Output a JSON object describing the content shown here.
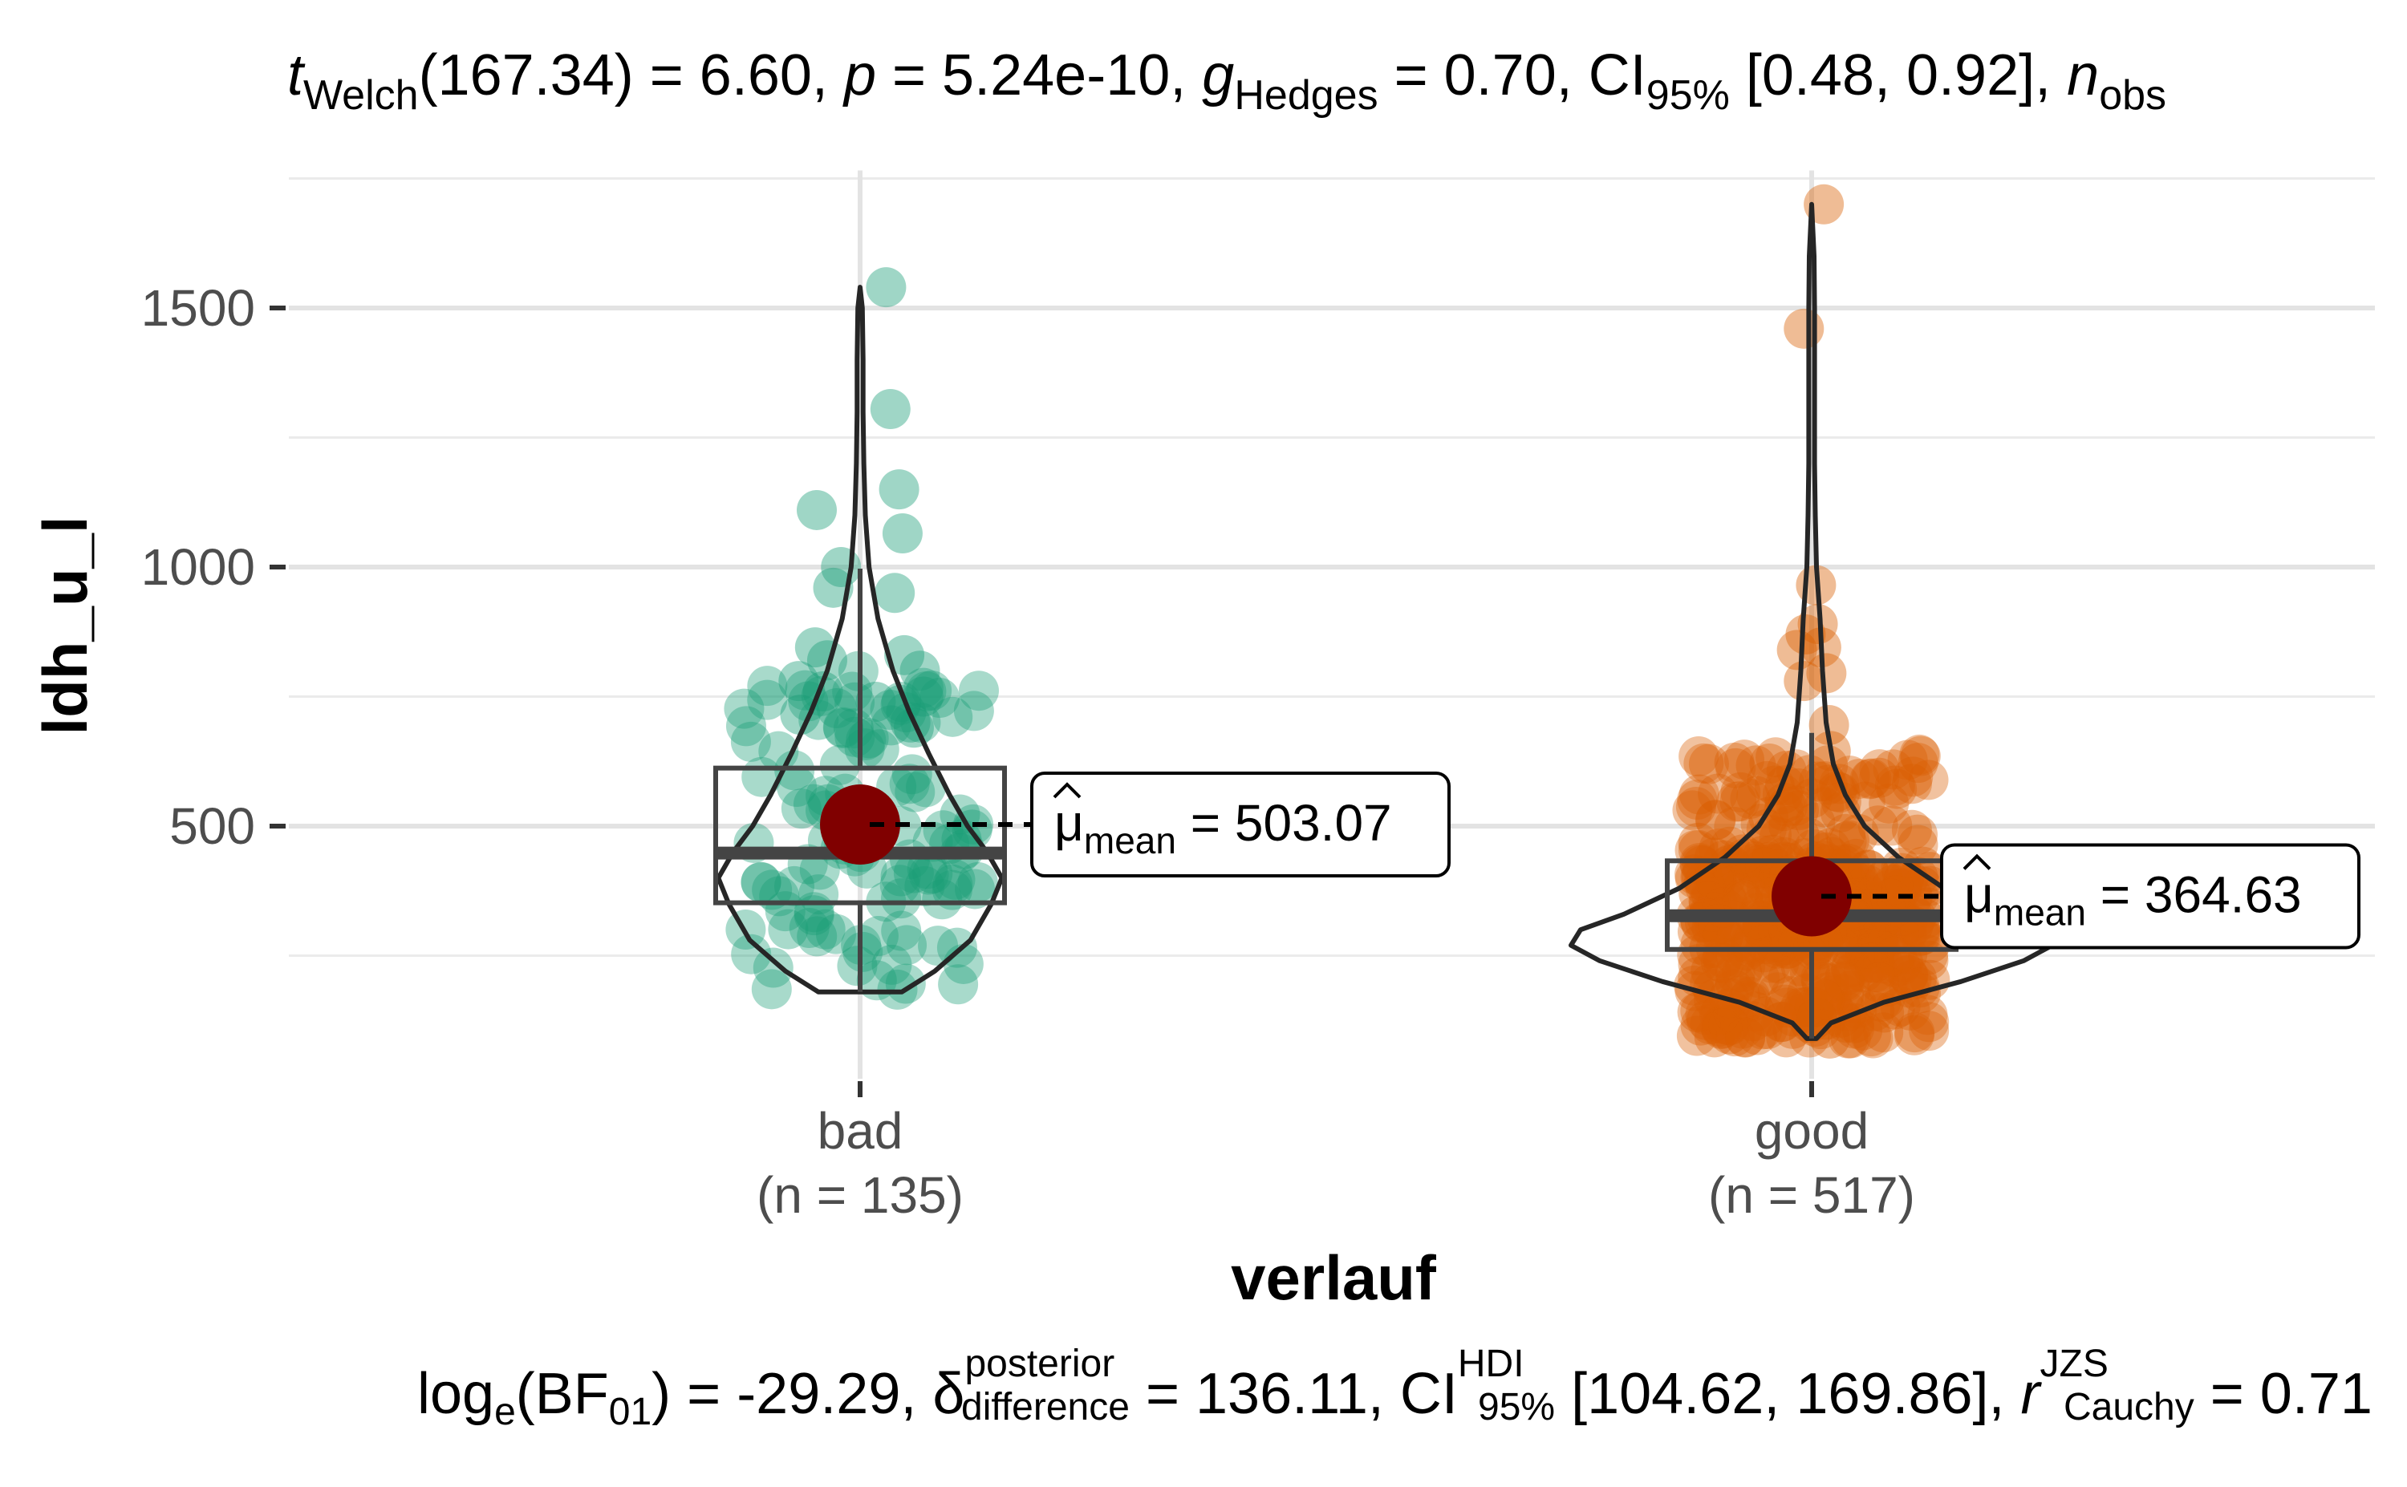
{
  "chart_data": {
    "type": "violin-box-scatter",
    "title": {
      "t": "t",
      "t_sub": "Welch",
      "df": "(167.34) = 6.60, ",
      "p": "p",
      "p_val": " = 5.24e-10, ",
      "g": "g",
      "g_sub": "Hedges",
      "g_val": " = 0.70, CI",
      "ci_sub": "95%",
      "ci_val": " [0.48, 0.92], ",
      "n": "n",
      "n_sub": "obs"
    },
    "subtitle": {
      "log": "log",
      "log_sub": "e",
      "bf_open": "(BF",
      "bf_sub": "01",
      "bf_val": ") = -29.29, ",
      "delta": "δ",
      "delta_sup": "posterior",
      "delta_sub": "difference",
      "delta_val": " = 136.11, CI",
      "hdi_sup": "HDI",
      "hdi_sub": "95%",
      "hdi_val": " [104.62, 169.86], ",
      "r": "r",
      "r_sup": "JZS",
      "r_sub": "Cauchy",
      "r_val": " = 0.71"
    },
    "xlabel": "verlauf",
    "ylabel": "ldh_u_l",
    "ylim": [
      0,
      1750
    ],
    "yticks": [
      500,
      1000,
      1500
    ],
    "ytick_labels": [
      "500",
      "1000",
      "1500"
    ],
    "minor_grid": [
      250,
      750,
      1250,
      1750
    ],
    "grid": true,
    "groups": [
      {
        "category": "bad",
        "n_label": "(n = 135)",
        "color": "#1b9e77",
        "box": {
          "q1": 352,
          "median": 448,
          "q3": 612,
          "whisker_low": 180,
          "whisker_high": 997
        },
        "mean": 503.07,
        "mean_label": {
          "mu": "μ",
          "sub": "mean",
          "val": " = 503.07"
        },
        "violin": [
          [
            180,
            0.28
          ],
          [
            220,
            0.5
          ],
          [
            280,
            0.74
          ],
          [
            350,
            0.88
          ],
          [
            400,
            0.95
          ],
          [
            450,
            0.85
          ],
          [
            500,
            0.72
          ],
          [
            560,
            0.6
          ],
          [
            640,
            0.46
          ],
          [
            720,
            0.33
          ],
          [
            800,
            0.22
          ],
          [
            900,
            0.12
          ],
          [
            1000,
            0.06
          ],
          [
            1100,
            0.035
          ],
          [
            1200,
            0.025
          ],
          [
            1300,
            0.02
          ],
          [
            1400,
            0.02
          ],
          [
            1500,
            0.015
          ],
          [
            1540,
            0.0
          ]
        ],
        "points": [
          {
            "x": 0.3,
            "y": 1540
          },
          {
            "x": 0.35,
            "y": 1305
          },
          {
            "x": 0.45,
            "y": 1150
          },
          {
            "x": -0.5,
            "y": 1110
          },
          {
            "x": 0.49,
            "y": 1065
          },
          {
            "x": -0.22,
            "y": 1000
          },
          {
            "x": -0.31,
            "y": 960
          },
          {
            "x": 0.4,
            "y": 950
          },
          {
            "x": 0.51,
            "y": 830
          },
          {
            "x": -0.52,
            "y": 845
          },
          {
            "x": -0.71,
            "y": 780
          },
          {
            "x": -0.38,
            "y": 820
          },
          {
            "x": 0.69,
            "y": 800
          },
          {
            "x": 0.73,
            "y": 750
          },
          {
            "x": -0.69,
            "y": 715
          },
          {
            "x": -0.43,
            "y": 760
          },
          {
            "x": 0.62,
            "y": 690
          },
          {
            "x": 0.58,
            "y": 700
          },
          {
            "x": 0.18,
            "y": 740
          }
        ]
      },
      {
        "category": "good",
        "n_label": "(n = 517)",
        "color": "#d95f02",
        "box": {
          "q1": 262,
          "median": 327,
          "q3": 433,
          "whisker_low": 90,
          "whisker_high": 680
        },
        "mean": 364.63,
        "mean_label": {
          "mu": "μ",
          "sub": "mean",
          "val": " = 364.63"
        },
        "violin": [
          [
            90,
            0.02
          ],
          [
            120,
            0.08
          ],
          [
            160,
            0.3
          ],
          [
            200,
            0.62
          ],
          [
            240,
            0.88
          ],
          [
            270,
            1.0
          ],
          [
            300,
            0.96
          ],
          [
            330,
            0.78
          ],
          [
            380,
            0.55
          ],
          [
            440,
            0.36
          ],
          [
            500,
            0.22
          ],
          [
            560,
            0.14
          ],
          [
            620,
            0.09
          ],
          [
            700,
            0.06
          ],
          [
            800,
            0.045
          ],
          [
            900,
            0.035
          ],
          [
            1000,
            0.02
          ],
          [
            1100,
            0.015
          ],
          [
            1200,
            0.012
          ],
          [
            1300,
            0.012
          ],
          [
            1400,
            0.012
          ],
          [
            1500,
            0.012
          ],
          [
            1600,
            0.01
          ],
          [
            1700,
            0.0
          ]
        ],
        "points": [
          {
            "x": 0.14,
            "y": 1700
          },
          {
            "x": -0.09,
            "y": 1460
          },
          {
            "x": 0.05,
            "y": 965
          },
          {
            "x": 0.07,
            "y": 890
          },
          {
            "x": -0.07,
            "y": 870
          },
          {
            "x": 0.11,
            "y": 845
          },
          {
            "x": -0.17,
            "y": 840
          },
          {
            "x": 0.17,
            "y": 795
          },
          {
            "x": -0.09,
            "y": 780
          },
          {
            "x": 0.2,
            "y": 695
          },
          {
            "x": 0.22,
            "y": 645
          },
          {
            "x": 0.06,
            "y": 130
          },
          {
            "x": 0.21,
            "y": 90
          }
        ]
      }
    ]
  }
}
